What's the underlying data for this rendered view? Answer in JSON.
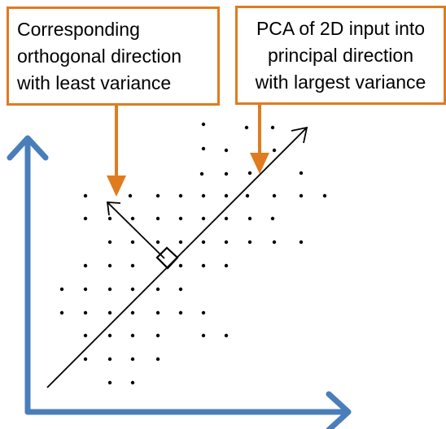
{
  "labels": {
    "left": {
      "lines": [
        "Corresponding",
        "orthogonal direction",
        "with least variance"
      ]
    },
    "right": {
      "lines": [
        "PCA of 2D input into",
        "principal direction",
        "with largest variance"
      ]
    }
  },
  "colors": {
    "axis": "#4a7ebb",
    "callout": "#e07b1f",
    "ink": "#000000"
  },
  "icons": {
    "right_angle": "square-right-angle-marker"
  },
  "points_grid_pattern": "scatter of data points elongated along the principal diagonal direction"
}
